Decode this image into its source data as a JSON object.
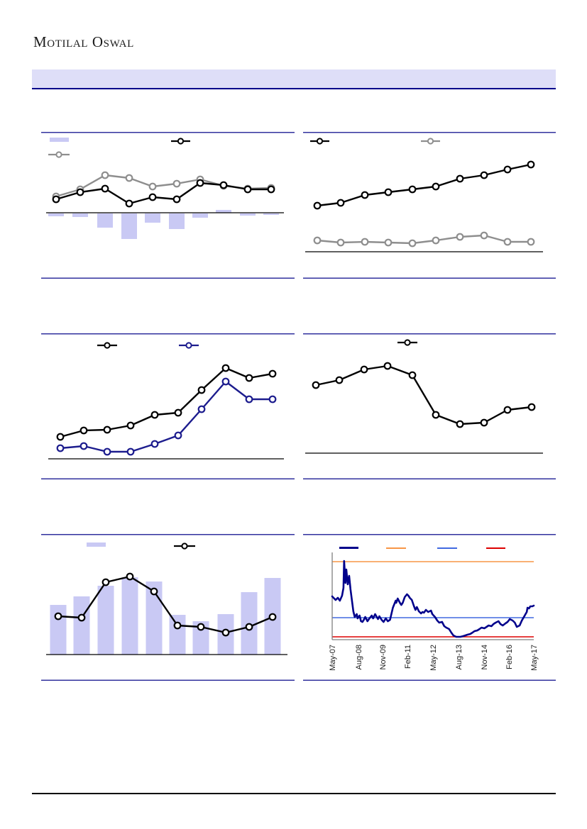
{
  "page": {
    "logo": "Motilal Oswal",
    "banner_title": "",
    "footer_text": ""
  },
  "colors": {
    "banner_bg": "#DEDEF8",
    "banner_border": "#00008B",
    "panel_border": "#31319E",
    "bar_fill": "#C9C9F4",
    "series_black": "#000000",
    "series_gray": "#8E8E8E",
    "series_navy": "#1C1C8E",
    "pe_line": "#00008B",
    "pe_peak": "#F79646",
    "pe_avg": "#4169E1",
    "pe_min": "#DD0000",
    "axis_black": "#000000",
    "axis_gray": "#808080",
    "tick_label": "#1a1a1a"
  },
  "chart_data": [
    {
      "id": "chart-1",
      "type": "combo-bar-line",
      "title": "",
      "units": "relative (axis labels not visible)",
      "legend": [
        {
          "swatch": "bar",
          "label": ""
        },
        {
          "swatch": "black-line",
          "label": ""
        },
        {
          "swatch": "gray-line",
          "label": ""
        }
      ],
      "bars": [
        -4,
        -5,
        -20,
        -36,
        -13,
        -22,
        -6,
        4,
        -3,
        -2
      ],
      "series": [
        {
          "name": "black",
          "values": [
            19,
            29,
            34,
            13,
            22,
            19,
            42,
            39,
            33,
            33
          ]
        },
        {
          "name": "gray",
          "values": [
            23,
            33,
            53,
            49,
            37,
            41,
            47,
            38,
            34,
            35
          ]
        }
      ]
    },
    {
      "id": "chart-2",
      "type": "line",
      "title": "",
      "units": "relative (axis labels not visible)",
      "legend": [
        {
          "swatch": "black-line",
          "label": ""
        },
        {
          "swatch": "gray-line",
          "label": ""
        }
      ],
      "series": [
        {
          "name": "black",
          "values": [
            65,
            69,
            80,
            84,
            88,
            92,
            103,
            108,
            116,
            123
          ]
        },
        {
          "name": "gray",
          "values": [
            16,
            13,
            14,
            13,
            12,
            16,
            21,
            23,
            14,
            14
          ]
        }
      ]
    },
    {
      "id": "chart-3",
      "type": "line",
      "title": "",
      "units": "relative (axis labels not visible)",
      "legend": [
        {
          "swatch": "black-line",
          "label": ""
        },
        {
          "swatch": "navy-line",
          "label": ""
        }
      ],
      "series": [
        {
          "name": "black",
          "values": [
            31,
            40,
            41,
            47,
            62,
            65,
            97,
            128,
            114,
            120
          ]
        },
        {
          "name": "navy",
          "values": [
            15,
            18,
            10,
            10,
            21,
            33,
            70,
            109,
            84,
            84
          ]
        }
      ]
    },
    {
      "id": "chart-4",
      "type": "line",
      "title": "",
      "units": "relative (axis labels not visible)",
      "legend": [
        {
          "swatch": "black-line",
          "label": ""
        }
      ],
      "series": [
        {
          "name": "black",
          "values": [
            96,
            103,
            118,
            123,
            110,
            54,
            41,
            43,
            61,
            65
          ]
        }
      ]
    },
    {
      "id": "chart-5",
      "type": "combo-bar-line",
      "title": "",
      "units": "relative (axis labels not visible)",
      "legend": [
        {
          "swatch": "bar",
          "label": ""
        },
        {
          "swatch": "black-line",
          "label": ""
        }
      ],
      "bars": [
        70,
        82,
        97,
        109,
        103,
        56,
        47,
        57,
        88,
        108
      ],
      "series": [
        {
          "name": "black",
          "values": [
            54,
            52,
            102,
            110,
            89,
            41,
            39,
            31,
            39,
            53
          ]
        }
      ]
    },
    {
      "id": "chart-6",
      "type": "pe-band",
      "title": "",
      "units": "relative (y-axis labels not visible)",
      "legend": [
        {
          "swatch": "navy-thick-line",
          "label": ""
        },
        {
          "swatch": "orange-line",
          "label": ""
        },
        {
          "swatch": "blue-line",
          "label": ""
        },
        {
          "swatch": "red-line",
          "label": ""
        }
      ],
      "x_labels": [
        "May-07",
        "Aug-08",
        "Nov-09",
        "Feb-11",
        "May-12",
        "Aug-13",
        "Nov-14",
        "Feb-16",
        "May-17"
      ],
      "hlines": [
        {
          "name": "peak",
          "value": 110
        },
        {
          "name": "avg",
          "value": 31
        },
        {
          "name": "min",
          "value": 4
        }
      ],
      "points": [
        [
          0.0,
          61
        ],
        [
          0.017,
          56
        ],
        [
          0.028,
          59
        ],
        [
          0.038,
          55
        ],
        [
          0.049,
          62
        ],
        [
          0.056,
          73
        ],
        [
          0.059,
          111
        ],
        [
          0.066,
          80
        ],
        [
          0.07,
          99
        ],
        [
          0.077,
          78
        ],
        [
          0.084,
          90
        ],
        [
          0.091,
          71
        ],
        [
          0.105,
          40
        ],
        [
          0.112,
          32
        ],
        [
          0.122,
          36
        ],
        [
          0.126,
          30
        ],
        [
          0.136,
          34
        ],
        [
          0.143,
          26
        ],
        [
          0.15,
          25
        ],
        [
          0.157,
          28
        ],
        [
          0.164,
          32
        ],
        [
          0.175,
          26
        ],
        [
          0.185,
          30
        ],
        [
          0.196,
          34
        ],
        [
          0.203,
          30
        ],
        [
          0.213,
          36
        ],
        [
          0.227,
          29
        ],
        [
          0.234,
          33
        ],
        [
          0.245,
          28
        ],
        [
          0.255,
          25
        ],
        [
          0.266,
          30
        ],
        [
          0.276,
          26
        ],
        [
          0.287,
          28
        ],
        [
          0.301,
          45
        ],
        [
          0.308,
          50
        ],
        [
          0.315,
          55
        ],
        [
          0.318,
          52
        ],
        [
          0.325,
          58
        ],
        [
          0.336,
          52
        ],
        [
          0.343,
          49
        ],
        [
          0.35,
          52
        ],
        [
          0.36,
          60
        ],
        [
          0.371,
          64
        ],
        [
          0.378,
          62
        ],
        [
          0.385,
          59
        ],
        [
          0.395,
          56
        ],
        [
          0.406,
          47
        ],
        [
          0.413,
          42
        ],
        [
          0.42,
          46
        ],
        [
          0.43,
          40
        ],
        [
          0.441,
          37
        ],
        [
          0.448,
          39
        ],
        [
          0.455,
          38
        ],
        [
          0.465,
          42
        ],
        [
          0.476,
          39
        ],
        [
          0.49,
          41
        ],
        [
          0.497,
          36
        ],
        [
          0.51,
          32
        ],
        [
          0.521,
          27
        ],
        [
          0.531,
          24
        ],
        [
          0.545,
          25
        ],
        [
          0.556,
          19
        ],
        [
          0.566,
          17
        ],
        [
          0.58,
          15
        ],
        [
          0.591,
          10
        ],
        [
          0.601,
          6
        ],
        [
          0.615,
          4
        ],
        [
          0.626,
          4
        ],
        [
          0.636,
          4
        ],
        [
          0.65,
          5
        ],
        [
          0.661,
          6
        ],
        [
          0.671,
          7
        ],
        [
          0.685,
          8
        ],
        [
          0.696,
          10
        ],
        [
          0.706,
          12
        ],
        [
          0.72,
          13
        ],
        [
          0.731,
          15
        ],
        [
          0.741,
          17
        ],
        [
          0.755,
          16
        ],
        [
          0.766,
          18
        ],
        [
          0.776,
          20
        ],
        [
          0.79,
          19
        ],
        [
          0.8,
          22
        ],
        [
          0.811,
          24
        ],
        [
          0.825,
          26
        ],
        [
          0.835,
          22
        ],
        [
          0.846,
          20
        ],
        [
          0.86,
          23
        ],
        [
          0.87,
          25
        ],
        [
          0.881,
          29
        ],
        [
          0.895,
          27
        ],
        [
          0.906,
          24
        ],
        [
          0.916,
          18
        ],
        [
          0.93,
          20
        ],
        [
          0.941,
          27
        ],
        [
          0.951,
          32
        ],
        [
          0.965,
          39
        ],
        [
          0.969,
          45
        ],
        [
          0.976,
          44
        ],
        [
          0.983,
          47
        ],
        [
          0.993,
          47
        ],
        [
          1.0,
          48
        ]
      ]
    }
  ]
}
